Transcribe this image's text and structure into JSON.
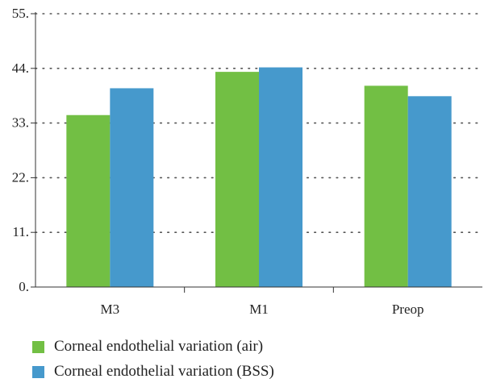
{
  "chart_data": {
    "type": "bar",
    "title": "",
    "xlabel": "",
    "ylabel": "",
    "categories": [
      "M3",
      "M1",
      "Preop"
    ],
    "series": [
      {
        "name": "Corneal endothelial variation (air)",
        "color": "#72bf44",
        "values": [
          34.6,
          43.3,
          40.5
        ]
      },
      {
        "name": "Corneal endothelial variation (BSS)",
        "color": "#4699cc",
        "values": [
          40.0,
          44.2,
          38.4
        ]
      }
    ],
    "ylim": [
      0,
      55
    ],
    "yticks": [
      0,
      11,
      22,
      33,
      44,
      55
    ],
    "ytick_labels": [
      "0.",
      "11.",
      "22.",
      "33.",
      "44.",
      "55."
    ],
    "grid": "horizontal dotted",
    "legend_position": "bottom-left"
  }
}
